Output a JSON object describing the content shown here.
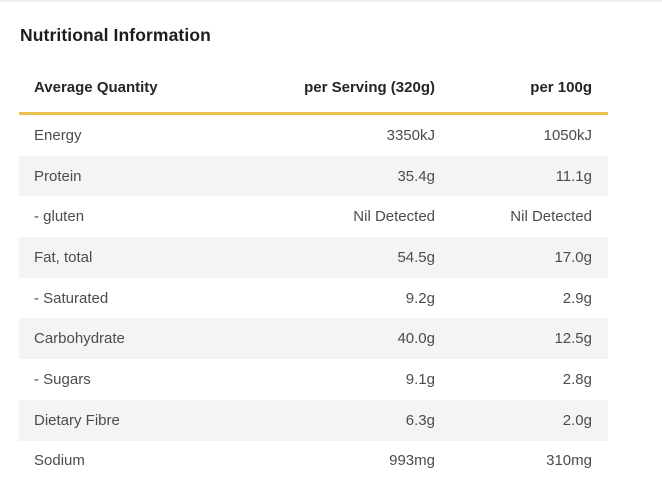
{
  "title": "Nutritional Information",
  "colors": {
    "accent": "#e9c050",
    "stripe": "#f4f4f4",
    "text": "#4c4c4c",
    "heading": "#262626",
    "title": "#1d1d1d",
    "background": "#ffffff"
  },
  "table": {
    "columns": [
      "Average Quantity",
      "per Serving (320g)",
      "per 100g"
    ],
    "rows": [
      {
        "label": "Energy",
        "per_serving": "3350kJ",
        "per_100g": "1050kJ"
      },
      {
        "label": "Protein",
        "per_serving": "35.4g",
        "per_100g": "11.1g"
      },
      {
        "label": "- gluten",
        "per_serving": "Nil Detected",
        "per_100g": "Nil Detected"
      },
      {
        "label": "Fat, total",
        "per_serving": "54.5g",
        "per_100g": "17.0g"
      },
      {
        "label": "- Saturated",
        "per_serving": "9.2g",
        "per_100g": "2.9g"
      },
      {
        "label": "Carbohydrate",
        "per_serving": "40.0g",
        "per_100g": "12.5g"
      },
      {
        "label": "- Sugars",
        "per_serving": "9.1g",
        "per_100g": "2.8g"
      },
      {
        "label": "Dietary Fibre",
        "per_serving": "6.3g",
        "per_100g": "2.0g"
      },
      {
        "label": "Sodium",
        "per_serving": "993mg",
        "per_100g": "310mg"
      }
    ]
  }
}
